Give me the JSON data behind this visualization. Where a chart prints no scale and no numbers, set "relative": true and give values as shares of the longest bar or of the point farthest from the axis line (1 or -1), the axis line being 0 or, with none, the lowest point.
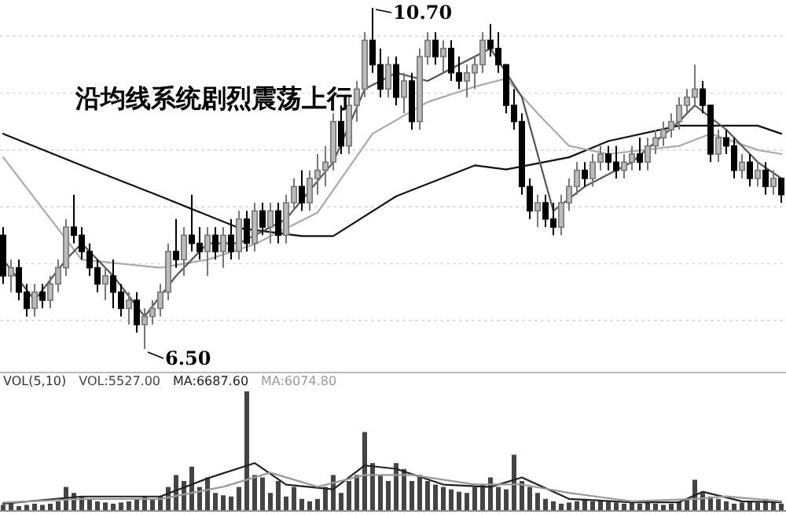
{
  "chart_data": [
    {
      "type": "candlestick",
      "title": "沿均线系统剧烈震荡上行",
      "grid": true,
      "annotations": [
        "10.70",
        "6.50"
      ],
      "categories": [
        null,
        null,
        null,
        null,
        null,
        null,
        null,
        null,
        null,
        null,
        null,
        null,
        null,
        null,
        null,
        null,
        null,
        null,
        null,
        null,
        null,
        null,
        null,
        null,
        null,
        null,
        null,
        null,
        null,
        null,
        null,
        null,
        null,
        null,
        null,
        null,
        null,
        null,
        null,
        null,
        null,
        null,
        null,
        null,
        null,
        null,
        null,
        null,
        null,
        null,
        null,
        null,
        null,
        null,
        null,
        null,
        null,
        null,
        null,
        null,
        null,
        null,
        null,
        null,
        null,
        null,
        null,
        null,
        null,
        null,
        null,
        null,
        null,
        null,
        null,
        null,
        null,
        null,
        null,
        null,
        null,
        null,
        null,
        null,
        null,
        null,
        null,
        null,
        null,
        null,
        null,
        null,
        null,
        null,
        null,
        null,
        null,
        null,
        null,
        null
      ],
      "ohlc": [
        [
          7.9,
          8.0,
          7.3,
          7.4
        ],
        [
          7.4,
          7.6,
          7.2,
          7.5
        ],
        [
          7.5,
          7.6,
          7.1,
          7.2
        ],
        [
          7.2,
          7.3,
          6.9,
          7.0
        ],
        [
          7.0,
          7.3,
          6.9,
          7.2
        ],
        [
          7.2,
          7.3,
          7.0,
          7.1
        ],
        [
          7.1,
          7.4,
          7.0,
          7.3
        ],
        [
          7.3,
          7.6,
          7.2,
          7.5
        ],
        [
          7.5,
          8.1,
          7.4,
          8.0
        ],
        [
          8.0,
          8.4,
          7.8,
          7.9
        ],
        [
          7.9,
          8.0,
          7.6,
          7.7
        ],
        [
          7.7,
          7.8,
          7.4,
          7.5
        ],
        [
          7.5,
          7.6,
          7.2,
          7.3
        ],
        [
          7.3,
          7.5,
          7.1,
          7.4
        ],
        [
          7.4,
          7.6,
          7.0,
          7.2
        ],
        [
          7.2,
          7.3,
          6.9,
          7.0
        ],
        [
          7.0,
          7.2,
          6.8,
          7.1
        ],
        [
          7.1,
          7.2,
          6.7,
          6.8
        ],
        [
          6.8,
          7.0,
          6.5,
          6.9
        ],
        [
          6.9,
          7.1,
          6.8,
          7.0
        ],
        [
          7.0,
          7.3,
          6.9,
          7.2
        ],
        [
          7.2,
          7.8,
          7.1,
          7.7
        ],
        [
          7.7,
          8.1,
          7.5,
          7.6
        ],
        [
          7.6,
          8.0,
          7.4,
          7.9
        ],
        [
          7.9,
          8.4,
          7.7,
          7.8
        ],
        [
          7.8,
          8.0,
          7.6,
          7.7
        ],
        [
          7.7,
          8.0,
          7.4,
          7.9
        ],
        [
          7.9,
          8.0,
          7.6,
          7.7
        ],
        [
          7.7,
          8.0,
          7.5,
          7.9
        ],
        [
          7.9,
          8.1,
          7.6,
          7.7
        ],
        [
          7.7,
          8.2,
          7.6,
          8.1
        ],
        [
          8.1,
          8.2,
          7.7,
          7.8
        ],
        [
          7.8,
          8.3,
          7.7,
          8.2
        ],
        [
          8.2,
          8.3,
          7.9,
          8.0
        ],
        [
          8.0,
          8.3,
          7.8,
          8.2
        ],
        [
          8.2,
          8.3,
          7.8,
          7.9
        ],
        [
          7.9,
          8.4,
          7.8,
          8.3
        ],
        [
          8.3,
          8.6,
          8.2,
          8.5
        ],
        [
          8.5,
          8.7,
          8.2,
          8.3
        ],
        [
          8.3,
          8.7,
          8.2,
          8.6
        ],
        [
          8.6,
          8.9,
          8.4,
          8.7
        ],
        [
          8.7,
          9.0,
          8.5,
          8.8
        ],
        [
          8.8,
          9.4,
          8.7,
          9.3
        ],
        [
          9.3,
          9.5,
          8.9,
          9.0
        ],
        [
          9.0,
          9.6,
          8.9,
          9.5
        ],
        [
          9.5,
          9.8,
          9.3,
          9.7
        ],
        [
          9.7,
          10.4,
          9.6,
          10.3
        ],
        [
          10.3,
          10.7,
          9.9,
          10.0
        ],
        [
          10.0,
          10.2,
          9.6,
          9.7
        ],
        [
          9.7,
          10.1,
          9.6,
          10.0
        ],
        [
          10.0,
          10.1,
          9.5,
          9.6
        ],
        [
          9.6,
          9.9,
          9.4,
          9.8
        ],
        [
          9.8,
          9.9,
          9.2,
          9.3
        ],
        [
          9.3,
          10.2,
          9.2,
          10.1
        ],
        [
          10.1,
          10.4,
          10.0,
          10.3
        ],
        [
          10.3,
          10.4,
          10.0,
          10.1
        ],
        [
          10.1,
          10.3,
          9.9,
          10.2
        ],
        [
          10.2,
          10.3,
          9.8,
          9.9
        ],
        [
          9.9,
          10.1,
          9.7,
          9.8
        ],
        [
          9.8,
          10.0,
          9.6,
          9.9
        ],
        [
          9.9,
          10.1,
          9.7,
          10.0
        ],
        [
          10.0,
          10.4,
          9.9,
          10.3
        ],
        [
          10.3,
          10.5,
          10.1,
          10.2
        ],
        [
          10.2,
          10.4,
          9.9,
          10.0
        ],
        [
          10.0,
          10.0,
          9.4,
          9.5
        ],
        [
          9.5,
          9.7,
          9.2,
          9.3
        ],
        [
          9.3,
          9.4,
          8.4,
          8.5
        ],
        [
          8.5,
          8.6,
          8.1,
          8.2
        ],
        [
          8.2,
          8.4,
          8.0,
          8.3
        ],
        [
          8.3,
          8.4,
          8.0,
          8.1
        ],
        [
          8.1,
          8.3,
          7.9,
          8.0
        ],
        [
          8.0,
          8.4,
          7.9,
          8.3
        ],
        [
          8.3,
          8.6,
          8.2,
          8.5
        ],
        [
          8.5,
          8.8,
          8.4,
          8.7
        ],
        [
          8.7,
          8.8,
          8.5,
          8.6
        ],
        [
          8.6,
          8.9,
          8.5,
          8.8
        ],
        [
          8.8,
          9.0,
          8.7,
          8.9
        ],
        [
          8.9,
          9.0,
          8.7,
          8.8
        ],
        [
          8.8,
          9.0,
          8.6,
          8.7
        ],
        [
          8.7,
          8.9,
          8.6,
          8.8
        ],
        [
          8.8,
          9.0,
          8.7,
          8.9
        ],
        [
          8.9,
          9.1,
          8.7,
          8.8
        ],
        [
          8.8,
          9.1,
          8.7,
          9.0
        ],
        [
          9.0,
          9.2,
          8.9,
          9.1
        ],
        [
          9.1,
          9.3,
          9.0,
          9.2
        ],
        [
          9.2,
          9.4,
          9.1,
          9.3
        ],
        [
          9.3,
          9.6,
          9.2,
          9.5
        ],
        [
          9.5,
          9.7,
          9.4,
          9.6
        ],
        [
          9.6,
          10.0,
          9.5,
          9.7
        ],
        [
          9.7,
          9.8,
          9.4,
          9.5
        ],
        [
          9.5,
          9.5,
          8.8,
          8.9
        ],
        [
          8.9,
          9.2,
          8.8,
          9.1
        ],
        [
          9.1,
          9.2,
          8.9,
          9.0
        ],
        [
          9.0,
          9.1,
          8.6,
          8.7
        ],
        [
          8.7,
          8.9,
          8.6,
          8.8
        ],
        [
          8.8,
          8.9,
          8.5,
          8.6
        ],
        [
          8.6,
          8.8,
          8.5,
          8.7
        ],
        [
          8.7,
          8.8,
          8.4,
          8.5
        ],
        [
          8.5,
          8.7,
          8.4,
          8.6
        ],
        [
          8.6,
          8.6,
          8.3,
          8.4
        ]
      ],
      "series": [
        {
          "type": "line",
          "color": "#111111",
          "values": [
            9.15,
            null,
            null,
            null,
            null,
            null,
            null,
            null,
            null,
            null,
            8.76,
            null,
            null,
            null,
            null,
            null,
            null,
            null,
            null,
            null,
            8.38,
            null,
            null,
            null,
            null,
            null,
            null,
            null,
            null,
            null,
            7.99,
            null,
            null,
            null,
            null,
            null,
            null,
            null,
            7.89,
            null,
            null,
            null,
            7.89,
            null,
            null,
            null,
            null,
            null,
            null,
            null,
            8.38,
            null,
            null,
            null,
            null,
            null,
            null,
            null,
            null,
            null,
            8.76,
            null,
            null,
            null,
            8.71,
            null,
            null,
            null,
            null,
            null,
            null,
            null,
            8.86,
            null,
            null,
            null,
            null,
            9.06,
            null,
            null,
            null,
            null,
            null,
            null,
            null,
            null,
            9.25,
            null,
            null,
            null,
            null,
            null,
            null,
            null,
            null,
            null,
            9.25,
            null,
            null,
            9.15
          ]
        },
        {
          "type": "line",
          "color": "#aaaaaa",
          "values": [
            8.86,
            null,
            null,
            null,
            null,
            null,
            null,
            null,
            null,
            null,
            7.6,
            null,
            null,
            null,
            null,
            null,
            null,
            null,
            null,
            null,
            7.5,
            null,
            null,
            null,
            null,
            null,
            7.6,
            null,
            null,
            null,
            null,
            null,
            7.79,
            null,
            null,
            null,
            null,
            null,
            null,
            null,
            8.18,
            null,
            null,
            null,
            null,
            null,
            null,
            9.15,
            null,
            null,
            null,
            null,
            null,
            null,
            9.54,
            null,
            null,
            null,
            null,
            null,
            9.73,
            null,
            null,
            null,
            9.83,
            null,
            null,
            null,
            9.4,
            null,
            null,
            null,
            9.0,
            null,
            null,
            null,
            null,
            8.9,
            null,
            null,
            null,
            null,
            null,
            null,
            null,
            null,
            9.0,
            null,
            null,
            null,
            9.15,
            null,
            null,
            null,
            null,
            null,
            8.95,
            null,
            null,
            8.9
          ]
        },
        {
          "type": "line",
          "color": "#555555",
          "values": [
            7.6,
            null,
            null,
            null,
            7.1,
            null,
            null,
            null,
            7.6,
            null,
            7.8,
            null,
            null,
            null,
            7.4,
            null,
            null,
            null,
            6.9,
            null,
            null,
            null,
            7.4,
            null,
            null,
            null,
            7.8,
            null,
            null,
            null,
            7.8,
            null,
            null,
            null,
            null,
            null,
            8.1,
            null,
            null,
            null,
            null,
            null,
            8.8,
            null,
            null,
            null,
            9.7,
            null,
            null,
            null,
            9.9,
            null,
            null,
            null,
            9.8,
            null,
            null,
            null,
            10.0,
            null,
            null,
            null,
            10.2,
            null,
            null,
            null,
            9.6,
            null,
            null,
            null,
            8.2,
            null,
            null,
            null,
            8.5,
            null,
            null,
            null,
            null,
            null,
            8.8,
            null,
            null,
            null,
            null,
            null,
            9.3,
            null,
            9.5,
            null,
            null,
            null,
            9.2,
            null,
            null,
            null,
            8.8,
            null,
            null,
            8.6
          ]
        }
      ]
    },
    {
      "type": "bar",
      "title": "VOL(5,10)",
      "relative": true,
      "categories": [
        null,
        null,
        null,
        null,
        null,
        null,
        null,
        null,
        null,
        null,
        null,
        null,
        null,
        null,
        null,
        null,
        null,
        null,
        null,
        null,
        null,
        null,
        null,
        null,
        null,
        null,
        null,
        null,
        null,
        null,
        null,
        null,
        null,
        null,
        null,
        null,
        null,
        null,
        null,
        null,
        null,
        null,
        null,
        null,
        null,
        null,
        null,
        null,
        null,
        null,
        null,
        null,
        null,
        null,
        null,
        null,
        null,
        null,
        null,
        null,
        null,
        null,
        null,
        null,
        null,
        null,
        null,
        null,
        null,
        null,
        null,
        null,
        null,
        null,
        null,
        null,
        null,
        null,
        null,
        null,
        null,
        null,
        null,
        null,
        null,
        null,
        null,
        null,
        null,
        null,
        null,
        null,
        null,
        null,
        null,
        null,
        null,
        null,
        null,
        null
      ],
      "series": [
        {
          "type": "bar",
          "name": "VOL:5527.00",
          "color": "#444444",
          "values": [
            0.05,
            0.06,
            0.04,
            0.05,
            0.06,
            0.05,
            0.06,
            0.08,
            0.2,
            0.15,
            0.12,
            0.1,
            0.08,
            0.07,
            0.06,
            0.07,
            0.08,
            0.1,
            0.12,
            0.1,
            0.12,
            0.2,
            0.3,
            0.25,
            0.37,
            0.2,
            0.28,
            0.15,
            0.13,
            0.12,
            0.2,
            1.0,
            0.3,
            0.28,
            0.15,
            0.25,
            0.12,
            0.2,
            0.1,
            0.08,
            0.1,
            0.2,
            0.3,
            0.15,
            0.25,
            0.3,
            0.66,
            0.4,
            0.3,
            0.25,
            0.4,
            0.35,
            0.25,
            0.3,
            0.25,
            0.22,
            0.2,
            0.18,
            0.16,
            0.15,
            0.2,
            0.22,
            0.28,
            0.2,
            0.18,
            0.47,
            0.25,
            0.2,
            0.15,
            0.1,
            0.08,
            0.06,
            0.07,
            0.08,
            0.1,
            0.08,
            0.09,
            0.08,
            0.07,
            0.06,
            0.07,
            0.06,
            0.07,
            0.06,
            0.05,
            0.06,
            0.08,
            0.1,
            0.26,
            0.15,
            0.12,
            0.1,
            0.08,
            0.06,
            0.07,
            0.08,
            0.07,
            0.1,
            0.07,
            0.06
          ]
        }
      ]
    },
    {
      "type": "line",
      "relative": true,
      "categories": [
        null,
        null,
        null,
        null,
        null,
        null,
        null,
        null,
        null,
        null,
        null,
        null,
        null,
        null,
        null,
        null,
        null,
        null,
        null,
        null,
        null,
        null,
        null,
        null,
        null,
        null,
        null,
        null,
        null,
        null,
        null,
        null,
        null,
        null,
        null,
        null,
        null,
        null,
        null,
        null,
        null,
        null,
        null,
        null,
        null,
        null,
        null,
        null,
        null,
        null,
        null,
        null,
        null,
        null,
        null,
        null,
        null,
        null,
        null,
        null,
        null,
        null,
        null,
        null,
        null,
        null,
        null,
        null,
        null,
        null,
        null,
        null,
        null,
        null,
        null,
        null,
        null,
        null,
        null,
        null,
        null,
        null,
        null,
        null,
        null,
        null,
        null,
        null,
        null,
        null,
        null,
        null,
        null,
        null,
        null,
        null,
        null,
        null,
        null,
        null
      ],
      "series": [
        {
          "type": "line",
          "name": "MA:6687.60",
          "color": "#222222",
          "values": [
            0.15,
            null,
            null,
            null,
            null,
            null,
            null,
            null,
            null,
            null,
            0.3,
            null,
            null,
            null,
            null,
            null,
            null,
            null,
            null,
            null,
            0.3,
            null,
            null,
            null,
            null,
            null,
            0.68,
            null,
            null,
            null,
            null,
            null,
            1.0,
            null,
            null,
            null,
            0.55,
            null,
            null,
            null,
            null,
            null,
            0.45,
            null,
            null,
            null,
            0.95,
            null,
            null,
            null,
            0.88,
            null,
            null,
            null,
            null,
            null,
            0.55,
            null,
            null,
            null,
            null,
            null,
            0.5,
            null,
            null,
            null,
            0.7,
            null,
            null,
            null,
            null,
            null,
            0.25,
            null,
            null,
            null,
            null,
            null,
            null,
            null,
            0.18,
            null,
            null,
            null,
            null,
            null,
            0.18,
            null,
            null,
            0.4,
            null,
            null,
            null,
            null,
            0.2,
            null,
            null,
            null,
            null,
            0.18
          ]
        }
      ]
    },
    {
      "type": "line",
      "relative": true,
      "categories": [
        null,
        null,
        null,
        null,
        null,
        null,
        null,
        null,
        null,
        null,
        null,
        null,
        null,
        null,
        null,
        null,
        null,
        null,
        null,
        null,
        null,
        null,
        null,
        null,
        null,
        null,
        null,
        null,
        null,
        null,
        null,
        null,
        null,
        null,
        null,
        null,
        null,
        null,
        null,
        null,
        null,
        null,
        null,
        null,
        null,
        null,
        null,
        null,
        null,
        null,
        null,
        null,
        null,
        null,
        null,
        null,
        null,
        null,
        null,
        null,
        null,
        null,
        null,
        null,
        null,
        null,
        null,
        null,
        null,
        null,
        null,
        null,
        null,
        null,
        null,
        null,
        null,
        null,
        null,
        null,
        null,
        null,
        null,
        null,
        null,
        null,
        null,
        null,
        null,
        null,
        null,
        null,
        null,
        null,
        null,
        null,
        null,
        null,
        null,
        null
      ],
      "series": [
        {
          "type": "line",
          "name": "MA:6074.80",
          "color": "#999999",
          "values": [
            0.22,
            null,
            null,
            null,
            null,
            null,
            null,
            null,
            null,
            null,
            0.31,
            null,
            null,
            null,
            null,
            null,
            null,
            null,
            null,
            null,
            0.31,
            null,
            null,
            null,
            null,
            null,
            null,
            null,
            0.63,
            null,
            null,
            null,
            null,
            null,
            1.0,
            null,
            null,
            null,
            null,
            null,
            0.63,
            null,
            null,
            null,
            null,
            null,
            0.94,
            null,
            null,
            null,
            null,
            null,
            0.94,
            null,
            null,
            null,
            null,
            null,
            null,
            null,
            0.69,
            null,
            null,
            null,
            null,
            null,
            0.69,
            null,
            null,
            null,
            null,
            null,
            0.47,
            null,
            null,
            null,
            null,
            null,
            null,
            null,
            0.25,
            null,
            null,
            null,
            null,
            null,
            null,
            null,
            0.31,
            null,
            null,
            null,
            0.38,
            null,
            null,
            null,
            null,
            null,
            null,
            0.25
          ]
        }
      ]
    }
  ]
}
